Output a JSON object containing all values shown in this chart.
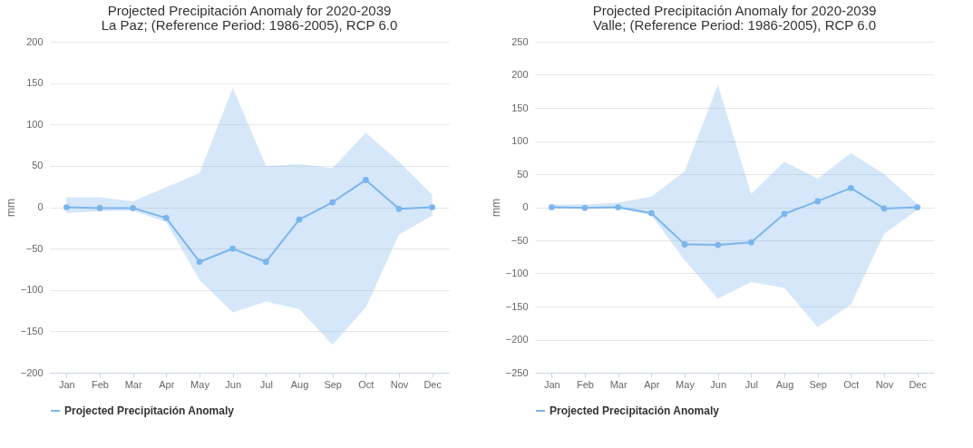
{
  "chart_data": [
    {
      "type": "line",
      "title": "Projected Precipitación Anomaly for 2020-2039",
      "subtitle": "La Paz; (Reference Period: 1986-2005), RCP 6.0",
      "ylabel": "mm",
      "categories": [
        "Jan",
        "Feb",
        "Mar",
        "Apr",
        "May",
        "Jun",
        "Jul",
        "Aug",
        "Sep",
        "Oct",
        "Nov",
        "Dec"
      ],
      "series": [
        {
          "name": "Projected Precipitación Anomaly",
          "color": "#7cb5ec",
          "values": [
            0,
            -1,
            -1,
            -13,
            -66,
            -50,
            -66,
            -15,
            6,
            33,
            -2,
            0
          ],
          "lower": [
            -7,
            -5,
            -4,
            -18,
            -88,
            -127,
            -114,
            -123,
            -166,
            -121,
            -33,
            -10
          ],
          "upper": [
            12,
            12,
            7,
            24,
            41,
            144,
            50,
            52,
            47,
            90,
            55,
            15
          ]
        }
      ],
      "ylim": [
        -200,
        200
      ],
      "yticks": [
        -200,
        -150,
        -100,
        -50,
        0,
        50,
        100,
        150,
        200
      ],
      "grid": "y",
      "legend": "bottom",
      "marker": "circle",
      "line_style": "solid"
    },
    {
      "type": "line",
      "title": "Projected Precipitación Anomaly for 2020-2039",
      "subtitle": "Valle; (Reference Period: 1986-2005), RCP 6.0",
      "ylabel": "mm",
      "categories": [
        "Jan",
        "Feb",
        "Mar",
        "Apr",
        "May",
        "Jun",
        "Jul",
        "Aug",
        "Sep",
        "Oct",
        "Nov",
        "Dec"
      ],
      "series": [
        {
          "name": "Projected Precipitación Anomaly",
          "color": "#7cb5ec",
          "values": [
            0,
            -1,
            0,
            -9,
            -56,
            -57,
            -53,
            -10,
            9,
            29,
            -2,
            0
          ],
          "lower": [
            -2,
            -2,
            -2,
            -12,
            -80,
            -138,
            -113,
            -122,
            -181,
            -147,
            -40,
            -4
          ],
          "upper": [
            4,
            4,
            7,
            16,
            54,
            185,
            20,
            69,
            43,
            82,
            50,
            5
          ]
        }
      ],
      "ylim": [
        -250,
        250
      ],
      "yticks": [
        -250,
        -200,
        -150,
        -100,
        -50,
        0,
        50,
        100,
        150,
        200,
        250
      ],
      "grid": "y",
      "legend": "bottom",
      "marker": "circle",
      "line_style": "solid"
    }
  ]
}
